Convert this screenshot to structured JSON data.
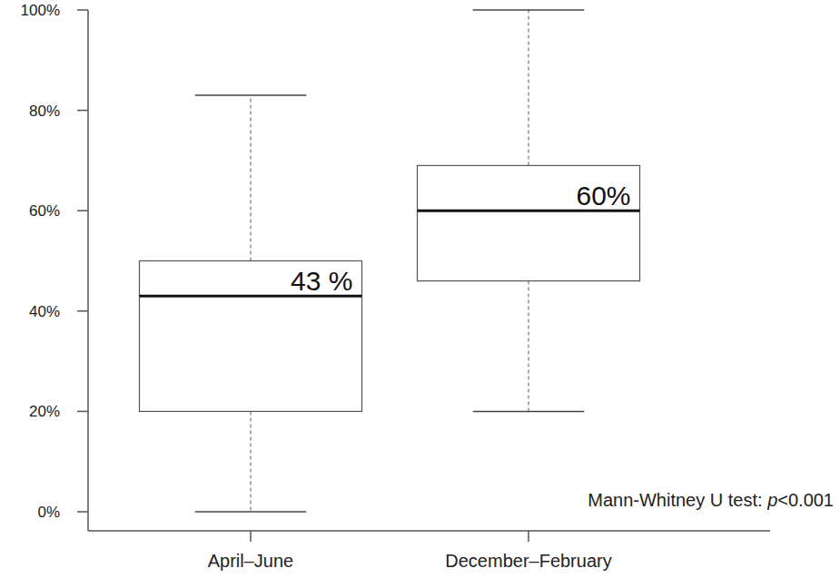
{
  "chart_data": {
    "type": "box",
    "categories": [
      "April–June",
      "December–February"
    ],
    "min": [
      0,
      20
    ],
    "q1": [
      20,
      46
    ],
    "median": [
      43,
      60
    ],
    "q3": [
      50,
      69
    ],
    "max": [
      83,
      100
    ],
    "value_labels": [
      "43 %",
      "60%"
    ],
    "data_labels": true,
    "annotation": [
      "Mann-Whitney U test: ",
      "p",
      "<0.001"
    ],
    "ylim": [
      0,
      100
    ],
    "yticks": [
      {
        "value": 0,
        "label": "0%"
      },
      {
        "value": 20,
        "label": "20%"
      },
      {
        "value": 40,
        "label": "40%"
      },
      {
        "value": 60,
        "label": "60%"
      },
      {
        "value": 80,
        "label": "80%"
      },
      {
        "value": 100,
        "label": "100%"
      }
    ],
    "grid": false
  }
}
